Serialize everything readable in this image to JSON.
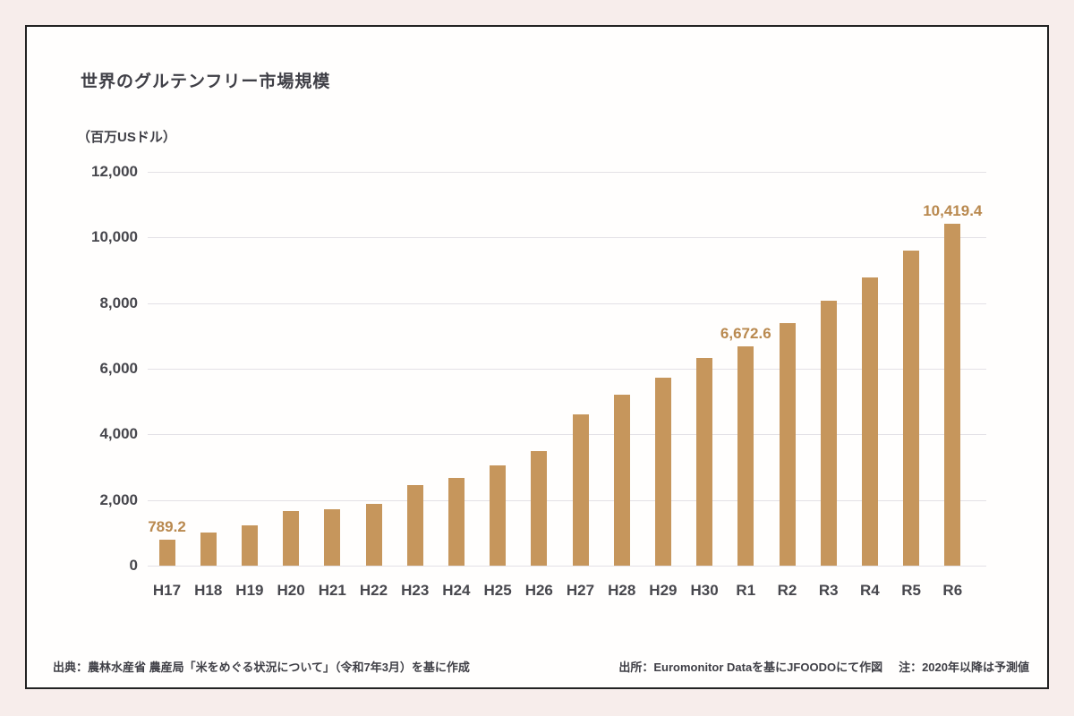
{
  "page": {
    "background": "#F7EDEB",
    "text_color": "#3F3F46"
  },
  "card": {
    "background": "#FFFEFD",
    "border_color": "#222222"
  },
  "chart_data": {
    "type": "bar",
    "title": "世界のグルテンフリー市場規模",
    "unit_label": "（百万USドル）",
    "categories": [
      "H17",
      "H18",
      "H19",
      "H20",
      "H21",
      "H22",
      "H23",
      "H24",
      "H25",
      "H26",
      "H27",
      "H28",
      "H29",
      "H30",
      "R1",
      "R2",
      "R3",
      "R4",
      "R5",
      "R6"
    ],
    "values": [
      789.2,
      1020,
      1230,
      1660,
      1720,
      1870,
      2460,
      2660,
      3060,
      3500,
      4620,
      5210,
      5720,
      6330,
      6672.6,
      7390,
      8060,
      8780,
      9590,
      10419.4
    ],
    "data_labels": [
      {
        "index": 0,
        "text": "789.2"
      },
      {
        "index": 14,
        "text": "6,672.6"
      },
      {
        "index": 19,
        "text": "10,419.4"
      }
    ],
    "y_ticks": [
      {
        "value": 0,
        "label": "0"
      },
      {
        "value": 2000,
        "label": "2,000"
      },
      {
        "value": 4000,
        "label": "4,000"
      },
      {
        "value": 6000,
        "label": "6,000"
      },
      {
        "value": 8000,
        "label": "8,000"
      },
      {
        "value": 10000,
        "label": "10,000"
      },
      {
        "value": 12000,
        "label": "12,000"
      }
    ],
    "ylim": [
      0,
      12000
    ],
    "grid": true,
    "legend": false,
    "bar_color": "#C6965C",
    "value_label_color": "#B9894F",
    "grid_color": "#E3E1E6",
    "axis_text_color": "#47474D"
  },
  "footer": {
    "left": "出典：農林水産省 農産局「米をめぐる状況について」（令和7年3月）を基に作成",
    "right_source": "出所：Euromonitor Dataを基にJFOODOにて作図",
    "right_note": "注：2020年以降は予測値"
  }
}
